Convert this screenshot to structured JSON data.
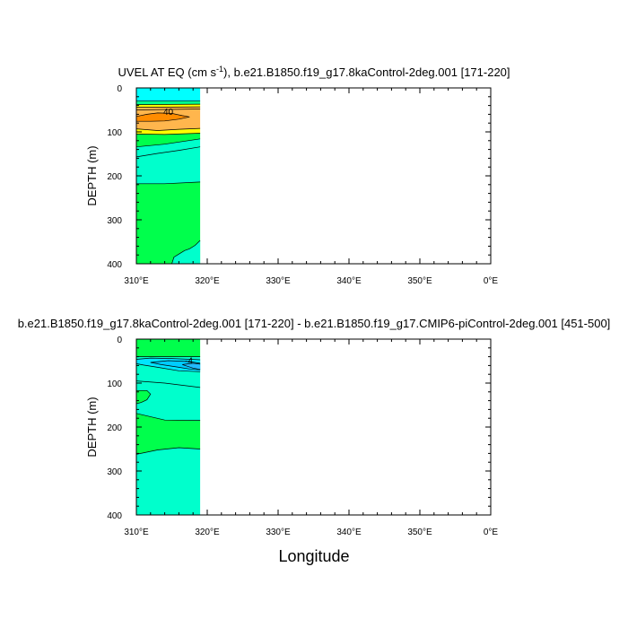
{
  "xlabel": "Longitude",
  "chart_data": [
    {
      "type": "heatmap",
      "title": "UVEL AT EQ (cm s-1), b.e21.B1850.f19_g17.8kaControl-2deg.001 [171-220]",
      "title_main": "UVEL AT EQ (cm s",
      "title_sup": "-1",
      "title_rest": "), b.e21.B1850.f19_g17.8kaControl-2deg.001 [171-220]",
      "ylabel": "DEPTH (m)",
      "xticks": [
        "310°E",
        "320°E",
        "330°E",
        "340°E",
        "350°E",
        "0°E"
      ],
      "yticks": [
        0,
        100,
        200,
        300,
        400
      ],
      "xlim": [
        310,
        360
      ],
      "ylim": [
        0,
        400
      ],
      "data_xrange": [
        310,
        319
      ],
      "contour_label": "40",
      "contour_label_pos": [
        314.5,
        53
      ],
      "fills": [
        {
          "color": "#00ffff",
          "top": [
            [
              310,
              0
            ],
            [
              319,
              0
            ]
          ],
          "bottom": [
            [
              310,
              30
            ],
            [
              319,
              30
            ]
          ]
        },
        {
          "color": "#00ff8f",
          "top": [
            [
              310,
              30
            ],
            [
              319,
              30
            ]
          ],
          "bottom": [
            [
              310,
              38
            ],
            [
              319,
              37
            ]
          ]
        },
        {
          "color": "#ffff00",
          "top": [
            [
              310,
              38
            ],
            [
              319,
              37
            ]
          ],
          "bottom": [
            [
              310,
              44
            ],
            [
              319,
              43
            ]
          ]
        },
        {
          "color": "#ffb64d",
          "top": [
            [
              310,
              44
            ],
            [
              319,
              43
            ]
          ],
          "bottom": [
            [
              310,
              93
            ],
            [
              313,
              97
            ],
            [
              316,
              94
            ],
            [
              319,
              92
            ]
          ]
        },
        {
          "color": "#ffff00",
          "top": [
            [
              310,
              93
            ],
            [
              313,
              97
            ],
            [
              316,
              94
            ],
            [
              319,
              92
            ]
          ],
          "bottom": [
            [
              310,
              105
            ],
            [
              314,
              106
            ],
            [
              319,
              103
            ]
          ]
        },
        {
          "color": "#00ff4c",
          "top": [
            [
              310,
              105
            ],
            [
              314,
              106
            ],
            [
              319,
              103
            ]
          ],
          "bottom": [
            [
              310,
              134
            ],
            [
              314,
              128
            ],
            [
              319,
              116
            ]
          ]
        },
        {
          "color": "#00ffcc",
          "top": [
            [
              310,
              134
            ],
            [
              314,
              128
            ],
            [
              319,
              116
            ]
          ],
          "bottom": [
            [
              310,
              157
            ],
            [
              313,
              149
            ],
            [
              316,
              142
            ],
            [
              319,
              134
            ]
          ]
        },
        {
          "color": "#00ffcc",
          "top": [
            [
              310,
              157
            ],
            [
              313,
              149
            ],
            [
              316,
              142
            ],
            [
              319,
              134
            ]
          ],
          "bottom": [
            [
              310,
              218
            ],
            [
              314,
              218
            ],
            [
              319,
              214
            ]
          ]
        },
        {
          "color": "#00ff4c",
          "top": [
            [
              310,
              218
            ],
            [
              314,
              218
            ],
            [
              319,
              214
            ]
          ],
          "bottom": [
            [
              310,
              400
            ],
            [
              319,
              400
            ]
          ]
        },
        {
          "color": "#00ffcc",
          "poly": [
            [
              315,
              400
            ],
            [
              315.3,
              385
            ],
            [
              316,
              378
            ],
            [
              316.8,
              370
            ],
            [
              317.5,
              366
            ],
            [
              318.3,
              358
            ],
            [
              319,
              347
            ],
            [
              319,
              400
            ]
          ]
        },
        {
          "color": "#ff8c00",
          "poly": [
            [
              310,
              65
            ],
            [
              311.5,
              60
            ],
            [
              313,
              57
            ],
            [
              315,
              58
            ],
            [
              316.5,
              63
            ],
            [
              317.5,
              66
            ],
            [
              316,
              71
            ],
            [
              314,
              75
            ],
            [
              312,
              76
            ],
            [
              310,
              76
            ]
          ]
        }
      ],
      "lines": [
        [
          [
            310,
            30
          ],
          [
            319,
            30
          ]
        ],
        [
          [
            310,
            38
          ],
          [
            319,
            37
          ]
        ],
        [
          [
            310,
            44
          ],
          [
            319,
            43
          ]
        ],
        [
          [
            310,
            50
          ],
          [
            319,
            48
          ]
        ],
        [
          [
            310,
            93
          ],
          [
            313,
            97
          ],
          [
            316,
            94
          ],
          [
            319,
            92
          ]
        ],
        [
          [
            310,
            105
          ],
          [
            314,
            106
          ],
          [
            319,
            103
          ]
        ],
        [
          [
            310,
            134
          ],
          [
            314,
            128
          ],
          [
            319,
            116
          ]
        ],
        [
          [
            310,
            157
          ],
          [
            313,
            149
          ],
          [
            316,
            142
          ],
          [
            319,
            134
          ]
        ],
        [
          [
            310,
            218
          ],
          [
            314,
            218
          ],
          [
            319,
            214
          ]
        ],
        [
          [
            315,
            400
          ],
          [
            315.3,
            385
          ],
          [
            316,
            378
          ],
          [
            316.8,
            370
          ],
          [
            317.5,
            366
          ],
          [
            318.3,
            358
          ],
          [
            319,
            347
          ]
        ],
        [
          [
            310,
            65
          ],
          [
            311.5,
            60
          ],
          [
            313,
            57
          ],
          [
            315,
            58
          ],
          [
            316.5,
            63
          ],
          [
            317.5,
            66
          ],
          [
            316,
            71
          ],
          [
            314,
            75
          ],
          [
            312,
            76
          ],
          [
            310,
            76
          ]
        ]
      ]
    },
    {
      "type": "heatmap",
      "title": "b.e21.B1850.f19_g17.8kaControl-2deg.001 [171-220] - b.e21.B1850.f19_g17.CMIP6-piControl-2deg.001 [451-500]",
      "ylabel": "DEPTH (m)",
      "xticks": [
        "310°E",
        "320°E",
        "330°E",
        "340°E",
        "350°E",
        "0°E"
      ],
      "yticks": [
        0,
        100,
        200,
        300,
        400
      ],
      "xlim": [
        310,
        360
      ],
      "ylim": [
        0,
        400
      ],
      "data_xrange": [
        310,
        319
      ],
      "contour_label": "-4",
      "contour_label_pos": [
        317.4,
        48
      ],
      "fills": [
        {
          "color": "#00ff4c",
          "top": [
            [
              310,
              0
            ],
            [
              319,
              0
            ]
          ],
          "bottom": [
            [
              310,
              40
            ],
            [
              319,
              40
            ]
          ]
        },
        {
          "color": "#00ffcc",
          "top": [
            [
              310,
              40
            ],
            [
              319,
              40
            ]
          ],
          "bottom": [
            [
              310,
              95
            ],
            [
              314,
              100
            ],
            [
              319,
              110
            ]
          ]
        },
        {
          "color": "#00ffcc",
          "top": [
            [
              310,
              95
            ],
            [
              314,
              100
            ],
            [
              319,
              110
            ]
          ],
          "bottom": [
            [
              310,
              169
            ],
            [
              314,
              184
            ],
            [
              319,
              185
            ]
          ]
        },
        {
          "color": "#00ff4c",
          "top": [
            [
              310,
              169
            ],
            [
              314,
              184
            ],
            [
              319,
              185
            ]
          ],
          "bottom": [
            [
              310,
              262
            ],
            [
              313,
              252
            ],
            [
              316,
              247
            ],
            [
              319,
              250
            ]
          ]
        },
        {
          "color": "#00ffcc",
          "top": [
            [
              310,
              262
            ],
            [
              313,
              252
            ],
            [
              316,
              247
            ],
            [
              319,
              250
            ]
          ],
          "bottom": [
            [
              310,
              400
            ],
            [
              319,
              400
            ]
          ]
        },
        {
          "color": "#00ff4c",
          "poly": [
            [
              310,
              117
            ],
            [
              311.5,
              117
            ],
            [
              312,
              125
            ],
            [
              311.5,
              138
            ],
            [
              310.7,
              144
            ],
            [
              310,
              147
            ]
          ]
        },
        {
          "color": "#00e5ff",
          "poly": [
            [
              310,
              46
            ],
            [
              312,
              43
            ],
            [
              315,
              44
            ],
            [
              319,
              47
            ],
            [
              319,
              74
            ],
            [
              316,
              72
            ],
            [
              313,
              64
            ],
            [
              311,
              59
            ],
            [
              310,
              56
            ]
          ]
        },
        {
          "color": "#00ccff",
          "poly": [
            [
              312,
              53
            ],
            [
              314.5,
              49
            ],
            [
              317.5,
              51
            ],
            [
              319,
              55
            ],
            [
              319,
              70
            ],
            [
              317.5,
              68
            ],
            [
              316,
              64
            ],
            [
              313.5,
              58
            ]
          ]
        },
        {
          "color": "#22bbff",
          "poly": [
            [
              316.5,
              58
            ],
            [
              318,
              55
            ],
            [
              319,
              57
            ],
            [
              319,
              69
            ],
            [
              318,
              66
            ]
          ]
        }
      ],
      "lines": [
        [
          [
            310,
            40
          ],
          [
            319,
            40
          ]
        ],
        [
          [
            310,
            95
          ],
          [
            314,
            100
          ],
          [
            319,
            110
          ]
        ],
        [
          [
            310,
            169
          ],
          [
            314,
            184
          ],
          [
            319,
            185
          ]
        ],
        [
          [
            310,
            262
          ],
          [
            313,
            252
          ],
          [
            316,
            247
          ],
          [
            319,
            250
          ]
        ],
        [
          [
            310,
            117
          ],
          [
            311.5,
            117
          ],
          [
            312,
            125
          ],
          [
            311.5,
            138
          ],
          [
            310.7,
            144
          ],
          [
            310,
            147
          ]
        ],
        [
          [
            310,
            46
          ],
          [
            312,
            43
          ],
          [
            315,
            44
          ],
          [
            319,
            47
          ]
        ],
        [
          [
            319,
            74
          ],
          [
            316,
            72
          ],
          [
            313,
            64
          ],
          [
            311,
            59
          ],
          [
            310,
            56
          ]
        ],
        [
          [
            312,
            53
          ],
          [
            314.5,
            49
          ],
          [
            317.5,
            51
          ],
          [
            319,
            55
          ]
        ],
        [
          [
            319,
            70
          ],
          [
            317.5,
            68
          ],
          [
            316,
            64
          ],
          [
            313.5,
            58
          ],
          [
            312,
            53
          ]
        ],
        [
          [
            316.5,
            58
          ],
          [
            318,
            55
          ],
          [
            319,
            57
          ]
        ],
        [
          [
            319,
            69
          ],
          [
            318,
            66
          ],
          [
            316.5,
            58
          ]
        ]
      ]
    }
  ]
}
